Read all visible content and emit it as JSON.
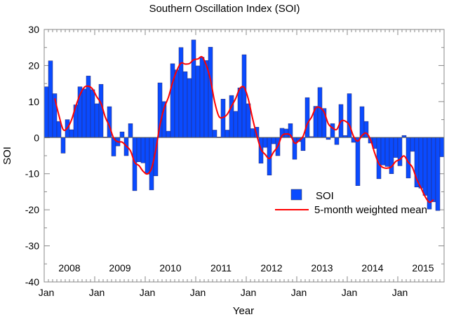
{
  "chart_data": {
    "type": "bar",
    "title": "Southern Oscillation Index (SOI)",
    "xlabel": "Year",
    "ylabel": "SOI",
    "ylim": [
      -40,
      30
    ],
    "yticks": [
      -40,
      -30,
      -20,
      -10,
      0,
      10,
      20,
      30
    ],
    "start": {
      "year": 2008,
      "month": 1
    },
    "year_labels": [
      "2008",
      "2009",
      "2010",
      "2011",
      "2012",
      "2013",
      "2014",
      "2015"
    ],
    "month_tick_label": "Jan",
    "legend_position": "lower-right",
    "series": [
      {
        "name": "SOI",
        "type": "bar",
        "color": "#0a4bff",
        "values": [
          14.1,
          21.3,
          12.2,
          4.5,
          -4.3,
          5.0,
          2.2,
          9.1,
          14.1,
          13.5,
          17.1,
          13.3,
          9.4,
          14.8,
          0.2,
          8.6,
          -5.1,
          -2.3,
          1.6,
          -5.0,
          3.9,
          -14.7,
          -6.7,
          -7.0,
          -10.1,
          -14.5,
          -10.6,
          15.2,
          10.0,
          1.8,
          20.5,
          18.8,
          25.0,
          18.3,
          16.4,
          27.1,
          19.9,
          22.3,
          21.4,
          25.1,
          2.1,
          0.2,
          10.7,
          2.1,
          11.7,
          7.3,
          13.8,
          23.0,
          9.4,
          2.5,
          2.9,
          -7.1,
          -2.7,
          -10.4,
          -1.7,
          -5.0,
          2.6,
          2.4,
          3.9,
          -6.0,
          -1.1,
          -3.6,
          11.1,
          0.3,
          8.7,
          13.9,
          8.1,
          -0.5,
          3.9,
          -1.9,
          9.2,
          0.6,
          12.2,
          -1.3,
          -13.3,
          8.6,
          4.5,
          -1.5,
          -3.0,
          -11.4,
          -7.6,
          -8.0,
          -10.0,
          -5.5,
          -7.8,
          0.6,
          -11.2,
          -3.8,
          -13.7,
          -14.0,
          -16.0,
          -19.8,
          -17.8,
          -20.2,
          -5.3
        ]
      },
      {
        "name": "5-month weighted mean",
        "type": "line",
        "color": "#ff0000",
        "weights": [
          1,
          2,
          3,
          2,
          1
        ]
      }
    ]
  }
}
